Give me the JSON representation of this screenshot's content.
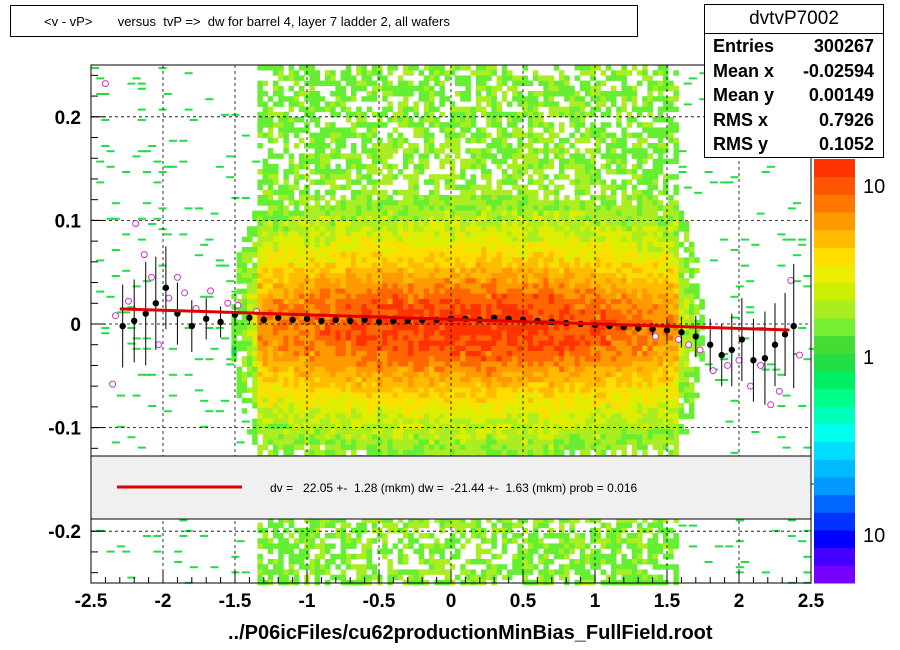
{
  "title": "<v - vP>       versus  tvP =>  dw for barrel 4, layer 7 ladder 2, all wafers",
  "stats": {
    "name": "dvtvP7002",
    "rows": [
      {
        "label": "Entries",
        "value": "300267"
      },
      {
        "label": "Mean x",
        "value": "-0.02594"
      },
      {
        "label": "Mean y",
        "value": "0.00149"
      },
      {
        "label": "RMS x",
        "value": "0.7926"
      },
      {
        "label": "RMS y",
        "value": "0.1052"
      }
    ]
  },
  "legend": {
    "fit_text": "dv =   22.05 +-  1.28 (mkm) dw =  -21.44 +-  1.63 (mkm) prob = 0.016",
    "fit_color": "#dd0000"
  },
  "footer": "../P06icFiles/cu62productionMinBias_FullField.root",
  "chart_data": {
    "type": "heatmap",
    "xlim": [
      -2.5,
      2.5
    ],
    "ylim": [
      -0.25,
      0.25
    ],
    "x_ticks": [
      "-2.5",
      "-2",
      "-1.5",
      "-1",
      "-0.5",
      "0",
      "0.5",
      "1",
      "1.5",
      "2",
      "2.5"
    ],
    "y_ticks": [
      "-0.2",
      "-0.1",
      "0",
      "0.1",
      "0.2"
    ],
    "grid": true,
    "colorbar_ticks": [
      "10",
      "1",
      "10"
    ],
    "colors": {
      "dense": "#ff3300",
      "mid": "#ffcc00",
      "low": "#22dd44",
      "profile_filled": "#000000",
      "profile_open": "#cc33cc",
      "fit_line": "#dd0000"
    },
    "fit": {
      "slope": -0.0044,
      "intercept": 0.0045
    },
    "profile_filled": [
      {
        "x": -2.28,
        "y": -0.002,
        "err": 0.04
      },
      {
        "x": -2.2,
        "y": 0.003,
        "err": 0.04
      },
      {
        "x": -2.12,
        "y": 0.01,
        "err": 0.05
      },
      {
        "x": -2.05,
        "y": 0.02,
        "err": 0.045
      },
      {
        "x": -1.98,
        "y": 0.035,
        "err": 0.04
      },
      {
        "x": -1.9,
        "y": 0.01,
        "err": 0.03
      },
      {
        "x": -1.8,
        "y": -0.002,
        "err": 0.025
      },
      {
        "x": -1.7,
        "y": 0.005,
        "err": 0.02
      },
      {
        "x": -1.6,
        "y": 0.002,
        "err": 0.015
      },
      {
        "x": -1.5,
        "y": 0.009,
        "err": 0.01
      },
      {
        "x": -1.4,
        "y": 0.006,
        "err": 0.006
      },
      {
        "x": -1.3,
        "y": 0.004,
        "err": 0.004
      },
      {
        "x": -1.2,
        "y": 0.006,
        "err": 0.003
      },
      {
        "x": -1.1,
        "y": 0.004,
        "err": 0.003
      },
      {
        "x": -1.0,
        "y": 0.005,
        "err": 0.002
      },
      {
        "x": -0.9,
        "y": 0.003,
        "err": 0.002
      },
      {
        "x": -0.8,
        "y": 0.004,
        "err": 0.002
      },
      {
        "x": -0.7,
        "y": 0.003,
        "err": 0.002
      },
      {
        "x": -0.6,
        "y": 0.004,
        "err": 0.002
      },
      {
        "x": -0.5,
        "y": 0.002,
        "err": 0.002
      },
      {
        "x": -0.4,
        "y": 0.003,
        "err": 0.002
      },
      {
        "x": -0.3,
        "y": 0.003,
        "err": 0.002
      },
      {
        "x": -0.2,
        "y": 0.004,
        "err": 0.002
      },
      {
        "x": -0.1,
        "y": 0.004,
        "err": 0.002
      },
      {
        "x": 0.0,
        "y": 0.005,
        "err": 0.002
      },
      {
        "x": 0.1,
        "y": 0.005,
        "err": 0.002
      },
      {
        "x": 0.2,
        "y": 0.004,
        "err": 0.002
      },
      {
        "x": 0.3,
        "y": 0.006,
        "err": 0.002
      },
      {
        "x": 0.4,
        "y": 0.005,
        "err": 0.002
      },
      {
        "x": 0.5,
        "y": 0.004,
        "err": 0.002
      },
      {
        "x": 0.6,
        "y": 0.003,
        "err": 0.002
      },
      {
        "x": 0.7,
        "y": 0.002,
        "err": 0.002
      },
      {
        "x": 0.8,
        "y": 0.001,
        "err": 0.002
      },
      {
        "x": 0.9,
        "y": 0.0,
        "err": 0.002
      },
      {
        "x": 1.0,
        "y": -0.001,
        "err": 0.003
      },
      {
        "x": 1.1,
        "y": -0.002,
        "err": 0.003
      },
      {
        "x": 1.2,
        "y": -0.003,
        "err": 0.003
      },
      {
        "x": 1.3,
        "y": -0.004,
        "err": 0.004
      },
      {
        "x": 1.4,
        "y": -0.005,
        "err": 0.006
      },
      {
        "x": 1.5,
        "y": -0.006,
        "err": 0.01
      },
      {
        "x": 1.6,
        "y": -0.008,
        "err": 0.015
      },
      {
        "x": 1.7,
        "y": -0.012,
        "err": 0.02
      },
      {
        "x": 1.8,
        "y": -0.02,
        "err": 0.025
      },
      {
        "x": 1.88,
        "y": -0.03,
        "err": 0.03
      },
      {
        "x": 1.95,
        "y": -0.025,
        "err": 0.035
      },
      {
        "x": 2.02,
        "y": -0.015,
        "err": 0.04
      },
      {
        "x": 2.1,
        "y": -0.035,
        "err": 0.04
      },
      {
        "x": 2.18,
        "y": -0.033,
        "err": 0.045
      },
      {
        "x": 2.25,
        "y": -0.02,
        "err": 0.04
      },
      {
        "x": 2.32,
        "y": -0.01,
        "err": 0.04
      },
      {
        "x": 2.38,
        "y": -0.002,
        "err": 0.06
      }
    ],
    "profile_open": [
      {
        "x": -2.4,
        "y": 0.232
      },
      {
        "x": -2.35,
        "y": -0.058
      },
      {
        "x": -2.33,
        "y": 0.008
      },
      {
        "x": -2.24,
        "y": 0.022
      },
      {
        "x": -2.19,
        "y": 0.097
      },
      {
        "x": -2.13,
        "y": 0.067
      },
      {
        "x": -2.08,
        "y": 0.045
      },
      {
        "x": -2.03,
        "y": -0.02
      },
      {
        "x": -1.96,
        "y": 0.025
      },
      {
        "x": -1.9,
        "y": 0.045
      },
      {
        "x": -1.85,
        "y": 0.03
      },
      {
        "x": -1.77,
        "y": 0.015
      },
      {
        "x": -1.67,
        "y": 0.032
      },
      {
        "x": -1.55,
        "y": 0.02
      },
      {
        "x": -1.48,
        "y": 0.018
      },
      {
        "x": -1.35,
        "y": 0.012
      },
      {
        "x": 1.42,
        "y": -0.012
      },
      {
        "x": 1.58,
        "y": -0.015
      },
      {
        "x": 1.65,
        "y": -0.02
      },
      {
        "x": 1.73,
        "y": -0.025
      },
      {
        "x": 1.82,
        "y": -0.045
      },
      {
        "x": 1.92,
        "y": -0.04
      },
      {
        "x": 2.0,
        "y": -0.035
      },
      {
        "x": 2.08,
        "y": -0.06
      },
      {
        "x": 2.15,
        "y": -0.04
      },
      {
        "x": 2.22,
        "y": -0.078
      },
      {
        "x": 2.28,
        "y": -0.065
      },
      {
        "x": 2.36,
        "y": 0.042
      },
      {
        "x": 2.42,
        "y": -0.03
      }
    ]
  }
}
